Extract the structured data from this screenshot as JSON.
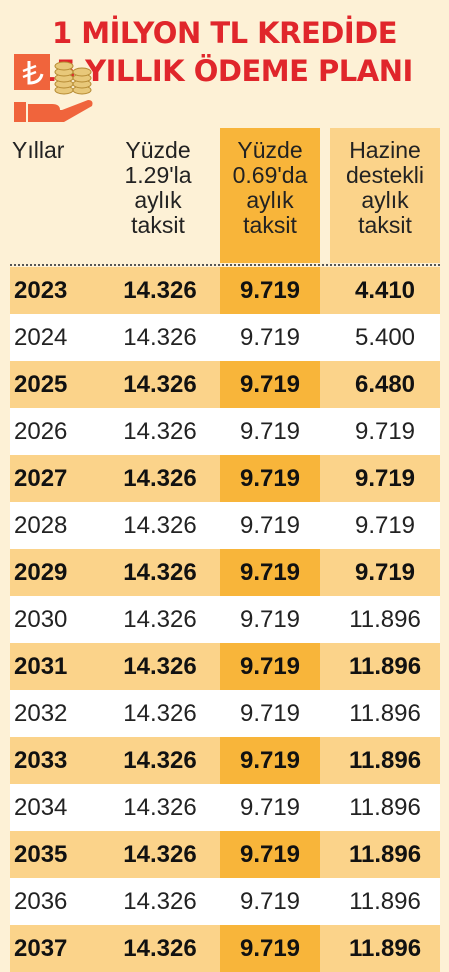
{
  "title": {
    "line1": "1 MİLYON TL KREDİDE",
    "line2": "15 YILLIK ÖDEME PLANI"
  },
  "headers": {
    "years": "Yıllar",
    "rate129": [
      "Yüzde",
      "1.29'la",
      "aylık",
      "taksit"
    ],
    "rate069": [
      "Yüzde",
      "0.69'da",
      "aylık",
      "taksit"
    ],
    "treasury": [
      "Hazine",
      "destekli",
      "aylık",
      "taksit"
    ]
  },
  "icon": "lira-coins-hand-icon",
  "colors": {
    "title": "#e0262b",
    "highlight": "#f8b53a",
    "light": "#fbd38a",
    "icon": "#f0643c"
  },
  "rows": [
    {
      "year": "2023",
      "r129": "14.326",
      "r069": "9.719",
      "haz": "4.410"
    },
    {
      "year": "2024",
      "r129": "14.326",
      "r069": "9.719",
      "haz": "5.400"
    },
    {
      "year": "2025",
      "r129": "14.326",
      "r069": "9.719",
      "haz": "6.480"
    },
    {
      "year": "2026",
      "r129": "14.326",
      "r069": "9.719",
      "haz": "9.719"
    },
    {
      "year": "2027",
      "r129": "14.326",
      "r069": "9.719",
      "haz": "9.719"
    },
    {
      "year": "2028",
      "r129": "14.326",
      "r069": "9.719",
      "haz": "9.719"
    },
    {
      "year": "2029",
      "r129": "14.326",
      "r069": "9.719",
      "haz": "9.719"
    },
    {
      "year": "2030",
      "r129": "14.326",
      "r069": "9.719",
      "haz": "11.896"
    },
    {
      "year": "2031",
      "r129": "14.326",
      "r069": "9.719",
      "haz": "11.896"
    },
    {
      "year": "2032",
      "r129": "14.326",
      "r069": "9.719",
      "haz": "11.896"
    },
    {
      "year": "2033",
      "r129": "14.326",
      "r069": "9.719",
      "haz": "11.896"
    },
    {
      "year": "2034",
      "r129": "14.326",
      "r069": "9.719",
      "haz": "11.896"
    },
    {
      "year": "2035",
      "r129": "14.326",
      "r069": "9.719",
      "haz": "11.896"
    },
    {
      "year": "2036",
      "r129": "14.326",
      "r069": "9.719",
      "haz": "11.896"
    },
    {
      "year": "2037",
      "r129": "14.326",
      "r069": "9.719",
      "haz": "11.896"
    }
  ]
}
